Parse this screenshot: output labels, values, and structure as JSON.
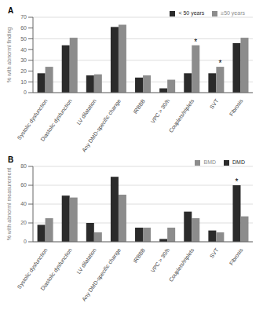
{
  "chart_data": [
    {
      "type": "bar",
      "title": "A",
      "ylabel": "% with abnorml finding",
      "categories": [
        "Systolic dysfunction",
        "Diastolic dysfunction",
        "LV dilatation",
        "Any DMD-specific change",
        "IRBBB",
        "VPC > 30/h",
        "Couplets/triplets",
        "SVT",
        "Fibrosis"
      ],
      "series": [
        {
          "name": "< 50 years",
          "color": "#2b2b2b",
          "values": [
            18,
            44,
            16,
            61,
            14,
            4,
            18,
            18,
            46
          ]
        },
        {
          "name": "≥50 years",
          "color": "#8c8c8c",
          "values": [
            24,
            51,
            17,
            63,
            16,
            12,
            44,
            24,
            51
          ]
        }
      ],
      "ylim": [
        0,
        70
      ],
      "yticks": [
        0,
        10,
        20,
        30,
        40,
        50,
        60,
        70
      ],
      "grid": true,
      "legend": "upper right",
      "annotations": [
        {
          "text": "*",
          "category": "Couplets/triplets",
          "series": "≥50 years"
        },
        {
          "text": "*",
          "category": "SVT",
          "series": "≥50 years"
        }
      ]
    },
    {
      "type": "bar",
      "title": "B",
      "ylabel": "% with abnorml measurement",
      "categories": [
        "Systolic dysfunction",
        "Diastolic dysfunction",
        "LV dilatation",
        "Any DMD-specific change",
        "IRBBB",
        "VPC > 30/h",
        "Couplets/triplets",
        "SVT",
        "Fibrosis"
      ],
      "series": [
        {
          "name": "DMD",
          "color": "#2b2b2b",
          "values": [
            18,
            49,
            20,
            69,
            15,
            3,
            32,
            12,
            60
          ]
        },
        {
          "name": "BMD",
          "color": "#8c8c8c",
          "values": [
            25,
            47,
            10,
            50,
            15,
            15,
            25,
            10,
            27
          ]
        }
      ],
      "ylim": [
        0,
        80
      ],
      "yticks": [
        0,
        10,
        20,
        30,
        40,
        50,
        60,
        70,
        80
      ],
      "grid": true,
      "legend": "upper right",
      "annotations": [
        {
          "text": "*",
          "category": "Fibrosis",
          "series": "DMD"
        }
      ]
    }
  ]
}
